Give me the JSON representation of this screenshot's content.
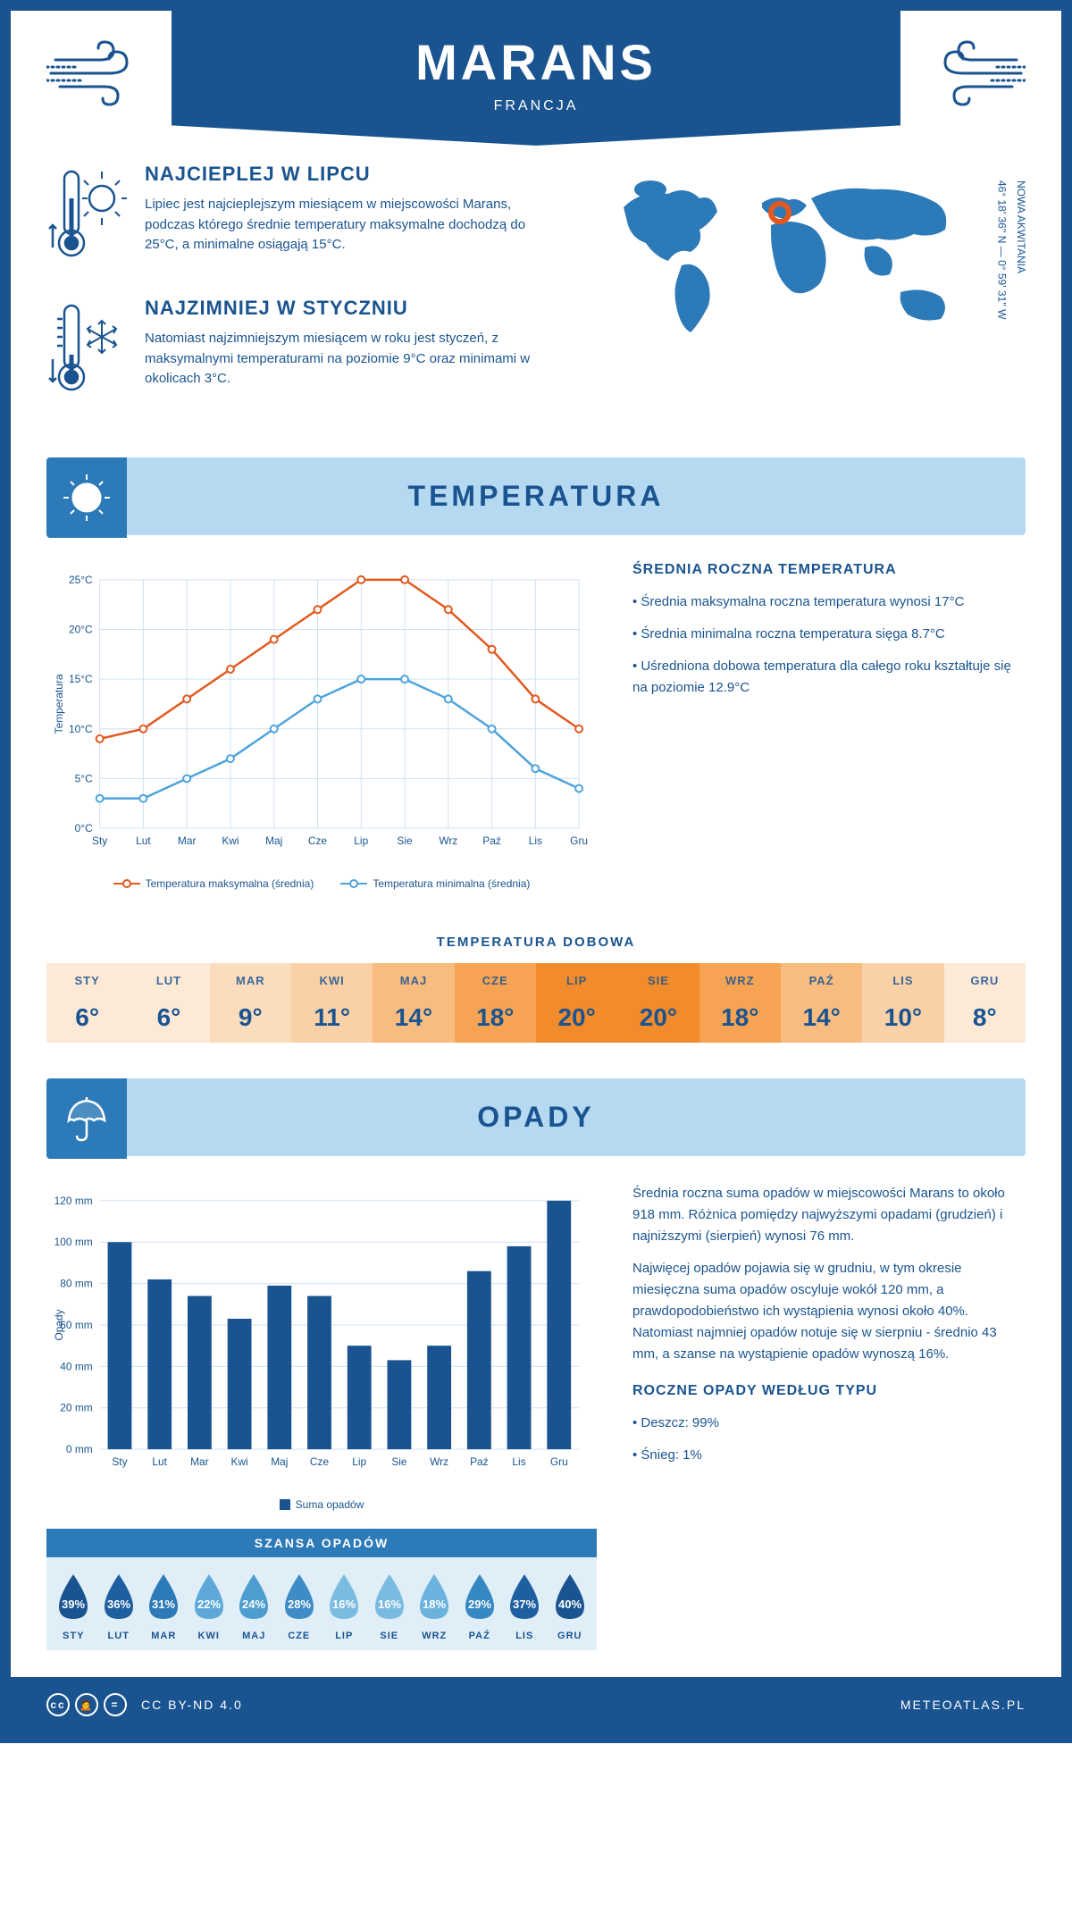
{
  "header": {
    "title": "MARANS",
    "subtitle": "FRANCJA"
  },
  "coords": {
    "region": "NOWA AKWITANIA",
    "lat": "46° 18' 36'' N",
    "lon": "0° 59' 31'' W"
  },
  "warmest": {
    "title": "NAJCIEPLEJ W LIPCU",
    "text": "Lipiec jest najcieplejszym miesiącem w miejscowości Marans, podczas którego średnie temperatury maksymalne dochodzą do 25°C, a minimalne osiągają 15°C."
  },
  "coldest": {
    "title": "NAJZIMNIEJ W STYCZNIU",
    "text": "Natomiast najzimniejszym miesiącem w roku jest styczeń, z maksymalnymi temperaturami na poziomie 9°C oraz minimami w okolicach 3°C."
  },
  "section_temp": "TEMPERATURA",
  "section_rain": "OPADY",
  "temp_chart": {
    "type": "line",
    "months": [
      "Sty",
      "Lut",
      "Mar",
      "Kwi",
      "Maj",
      "Cze",
      "Lip",
      "Sie",
      "Wrz",
      "Paź",
      "Lis",
      "Gru"
    ],
    "max_series": [
      9,
      10,
      13,
      16,
      19,
      22,
      25,
      25,
      22,
      18,
      13,
      10
    ],
    "min_series": [
      3,
      3,
      5,
      7,
      10,
      13,
      15,
      15,
      13,
      10,
      6,
      4
    ],
    "max_color": "#e2581f",
    "min_color": "#4da3db",
    "ylabel": "Temperatura",
    "ylim": [
      0,
      25
    ],
    "yticks": [
      0,
      5,
      10,
      15,
      20,
      25
    ],
    "ytick_labels": [
      "0°C",
      "5°C",
      "10°C",
      "15°C",
      "20°C",
      "25°C"
    ],
    "legend_max": "Temperatura maksymalna (średnia)",
    "legend_min": "Temperatura minimalna (średnia)",
    "grid_color": "#d0e0f0",
    "background": "#ffffff"
  },
  "temp_info": {
    "title": "ŚREDNIA ROCZNA TEMPERATURA",
    "b1": "• Średnia maksymalna roczna temperatura wynosi 17°C",
    "b2": "• Średnia minimalna roczna temperatura sięga 8.7°C",
    "b3": "• Uśredniona dobowa temperatura dla całego roku kształtuje się na poziomie 12.9°C"
  },
  "daily_temp": {
    "title": "TEMPERATURA DOBOWA",
    "months": [
      "STY",
      "LUT",
      "MAR",
      "KWI",
      "MAJ",
      "CZE",
      "LIP",
      "SIE",
      "WRZ",
      "PAŹ",
      "LIS",
      "GRU"
    ],
    "values": [
      "6°",
      "6°",
      "9°",
      "11°",
      "14°",
      "18°",
      "20°",
      "20°",
      "18°",
      "14°",
      "10°",
      "8°"
    ],
    "colors": [
      "#fce9d6",
      "#fce9d6",
      "#fbdcbd",
      "#fad0a6",
      "#f8bb80",
      "#f6a354",
      "#f28b2b",
      "#f28b2b",
      "#f6a354",
      "#f8bb80",
      "#fad0a6",
      "#fce9d6"
    ]
  },
  "rain_chart": {
    "type": "bar",
    "months": [
      "Sty",
      "Lut",
      "Mar",
      "Kwi",
      "Maj",
      "Cze",
      "Lip",
      "Sie",
      "Wrz",
      "Paź",
      "Lis",
      "Gru"
    ],
    "values": [
      100,
      82,
      74,
      63,
      79,
      74,
      50,
      43,
      50,
      86,
      98,
      120
    ],
    "bar_color": "#1a5490",
    "ylabel": "Opady",
    "ylim": [
      0,
      120
    ],
    "yticks": [
      0,
      20,
      40,
      60,
      80,
      100,
      120
    ],
    "ytick_labels": [
      "0 mm",
      "20 mm",
      "40 mm",
      "60 mm",
      "80 mm",
      "100 mm",
      "120 mm"
    ],
    "legend": "Suma opadów",
    "grid_color": "#d0e0f0"
  },
  "rain_info": {
    "p1": "Średnia roczna suma opadów w miejscowości Marans to około 918 mm. Różnica pomiędzy najwyższymi opadami (grudzień) i najniższymi (sierpień) wynosi 76 mm.",
    "p2": "Najwięcej opadów pojawia się w grudniu, w tym okresie miesięczna suma opadów oscyluje wokół 120 mm, a prawdopodobieństwo ich wystąpienia wynosi około 40%. Natomiast najmniej opadów notuje się w sierpniu - średnio 43 mm, a szanse na wystąpienie opadów wynoszą 16%.",
    "type_title": "ROCZNE OPADY WEDŁUG TYPU",
    "type_b1": "• Deszcz: 99%",
    "type_b2": "• Śnieg: 1%"
  },
  "rain_chance": {
    "title": "SZANSA OPADÓW",
    "months": [
      "STY",
      "LUT",
      "MAR",
      "KWI",
      "MAJ",
      "CZE",
      "LIP",
      "SIE",
      "WRZ",
      "PAŹ",
      "LIS",
      "GRU"
    ],
    "values": [
      "39%",
      "36%",
      "31%",
      "22%",
      "24%",
      "28%",
      "16%",
      "16%",
      "18%",
      "29%",
      "37%",
      "40%"
    ],
    "colors": [
      "#1a5490",
      "#1e5fa0",
      "#2d7ab8",
      "#5da8d8",
      "#4e9dd0",
      "#3d8cc5",
      "#7abce0",
      "#7abce0",
      "#6bb3dc",
      "#3688c2",
      "#1e5fa0",
      "#1a5490"
    ]
  },
  "footer": {
    "license": "CC BY-ND 4.0",
    "site": "METEOATLAS.PL"
  }
}
